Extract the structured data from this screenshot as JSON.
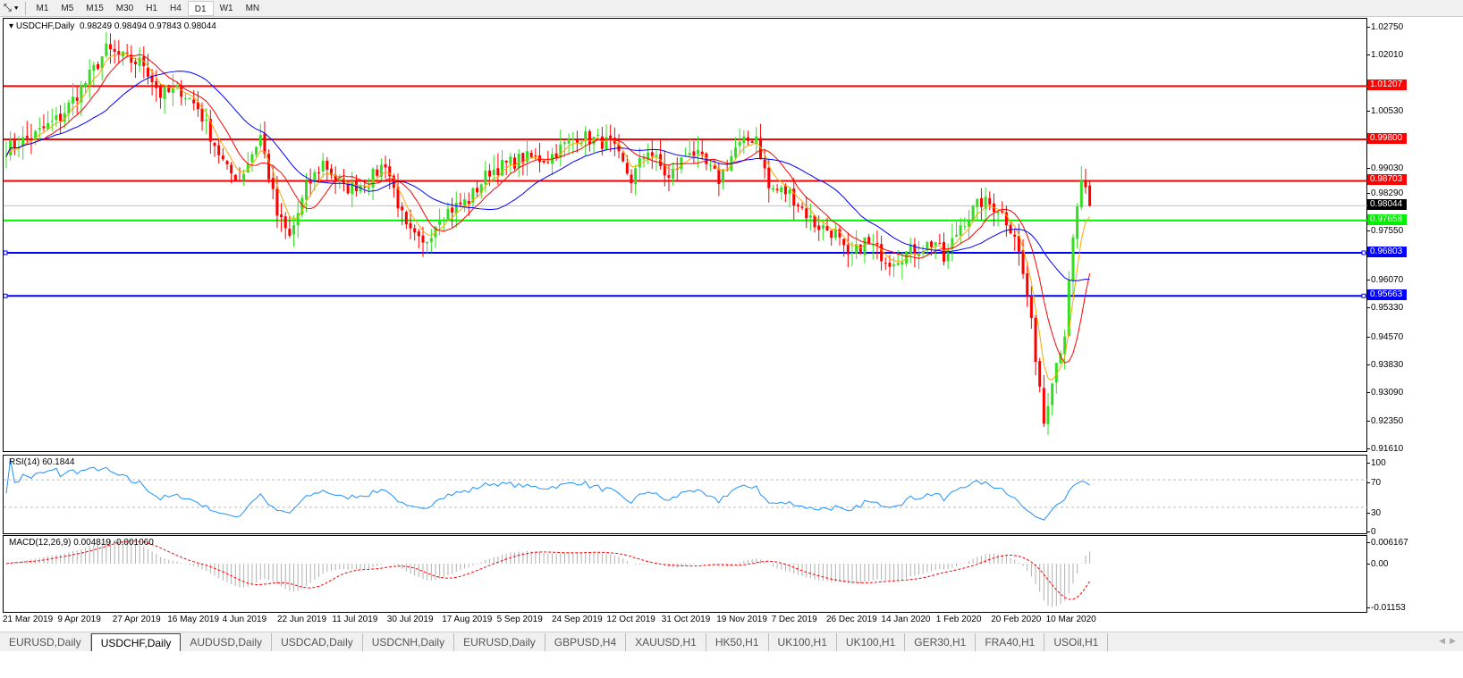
{
  "toolbar": {
    "timeframes": [
      "M1",
      "M5",
      "M15",
      "M30",
      "H1",
      "H4",
      "D1",
      "W1",
      "MN"
    ],
    "active": "D1"
  },
  "main": {
    "title": "USDCHF,Daily",
    "ohlc": "0.98249 0.98494 0.97843 0.98044"
  },
  "rsi": {
    "label": "RSI(14) 60.1844",
    "ticks": [
      "100",
      "70",
      "30",
      "0"
    ]
  },
  "macd": {
    "label": "MACD(12,26,9) 0.004819 -0.001060",
    "ticks": [
      "0.006167",
      "0.00",
      "-0.01153"
    ]
  },
  "price_ticks": [
    "1.02750",
    "1.02010",
    "1.00530",
    "0.99030",
    "0.98290",
    "0.97550",
    "0.96070",
    "0.95330",
    "0.94570",
    "0.93830",
    "0.93090",
    "0.92350",
    "0.91610"
  ],
  "levels": [
    {
      "price": "1.01207",
      "color": "#ff0000"
    },
    {
      "price": "0.99800",
      "color": "#ff0000"
    },
    {
      "price": "0.98703",
      "color": "#ff0000"
    },
    {
      "price": "0.98044",
      "color": "#000000",
      "line": "#c0c0c0"
    },
    {
      "price": "0.97658",
      "color": "#00ee00"
    },
    {
      "price": "0.96803",
      "color": "#0000ff"
    },
    {
      "price": "0.95663",
      "color": "#0000ff"
    }
  ],
  "dates": [
    "21 Mar 2019",
    "9 Apr 2019",
    "27 Apr 2019",
    "16 May 2019",
    "4 Jun 2019",
    "22 Jun 2019",
    "11 Jul 2019",
    "30 Jul 2019",
    "17 Aug 2019",
    "5 Sep 2019",
    "24 Sep 2019",
    "12 Oct 2019",
    "31 Oct 2019",
    "19 Nov 2019",
    "7 Dec 2019",
    "26 Dec 2019",
    "14 Jan 2020",
    "1 Feb 2020",
    "20 Feb 2020",
    "10 Mar 2020"
  ],
  "tabs": [
    "EURUSD,Daily",
    "USDCHF,Daily",
    "AUDUSD,Daily",
    "USDCAD,Daily",
    "USDCNH,Daily",
    "EURUSD,Daily",
    "GBPUSD,H4",
    "XAUUSD,H1",
    "HK50,H1",
    "UK100,H1",
    "UK100,H1",
    "GER30,H1",
    "FRA40,H1",
    "USOil,H1"
  ],
  "active_tab": "USDCHF,Daily",
  "chart_data": {
    "type": "candlestick",
    "symbol": "USDCHF",
    "timeframe": "Daily",
    "ylim": [
      0.9161,
      1.0275
    ],
    "close_path_bar_price": [
      [
        0,
        0.9956
      ],
      [
        7,
        0.9992
      ],
      [
        13,
        1.0039
      ],
      [
        19,
        1.013
      ],
      [
        24,
        1.0216
      ],
      [
        29,
        1.019
      ],
      [
        33,
        1.018
      ],
      [
        37,
        1.0098
      ],
      [
        42,
        1.011
      ],
      [
        46,
        1.0063
      ],
      [
        53,
        0.9897
      ],
      [
        56,
        0.9874
      ],
      [
        61,
        0.999
      ],
      [
        65,
        0.978
      ],
      [
        68,
        0.972
      ],
      [
        72,
        0.985
      ],
      [
        76,
        0.992
      ],
      [
        81,
        0.985
      ],
      [
        87,
        0.987
      ],
      [
        91,
        0.992
      ],
      [
        96,
        0.974
      ],
      [
        100,
        0.9697
      ],
      [
        104,
        0.978
      ],
      [
        111,
        0.982
      ],
      [
        116,
        0.9897
      ],
      [
        124,
        0.993
      ],
      [
        130,
        0.993
      ],
      [
        137,
        0.999
      ],
      [
        145,
        0.9968
      ],
      [
        150,
        0.9874
      ],
      [
        154,
        0.9956
      ],
      [
        159,
        0.9874
      ],
      [
        164,
        0.9956
      ],
      [
        171,
        0.9874
      ],
      [
        175,
        0.9956
      ],
      [
        180,
        0.999
      ],
      [
        183,
        0.985
      ],
      [
        188,
        0.9838
      ],
      [
        194,
        0.9756
      ],
      [
        199,
        0.9732
      ],
      [
        202,
        0.966
      ],
      [
        206,
        0.971
      ],
      [
        212,
        0.966
      ],
      [
        216,
        0.968
      ],
      [
        223,
        0.971
      ],
      [
        225,
        0.966
      ],
      [
        229,
        0.9756
      ],
      [
        234,
        0.9815
      ],
      [
        238,
        0.98
      ],
      [
        242,
        0.9732
      ],
      [
        245,
        0.9567
      ],
      [
        248,
        0.933
      ],
      [
        249,
        0.9236
      ],
      [
        251,
        0.9354
      ],
      [
        254,
        0.947
      ],
      [
        256,
        0.971
      ],
      [
        258,
        0.9874
      ],
      [
        260,
        0.9804
      ]
    ],
    "moving_averages": [
      {
        "color": "#ffa500"
      },
      {
        "color": "#ff0000"
      },
      {
        "color": "#0000ff"
      }
    ],
    "indicators": [
      "RSI(14)",
      "MACD(12,26,9)"
    ]
  }
}
